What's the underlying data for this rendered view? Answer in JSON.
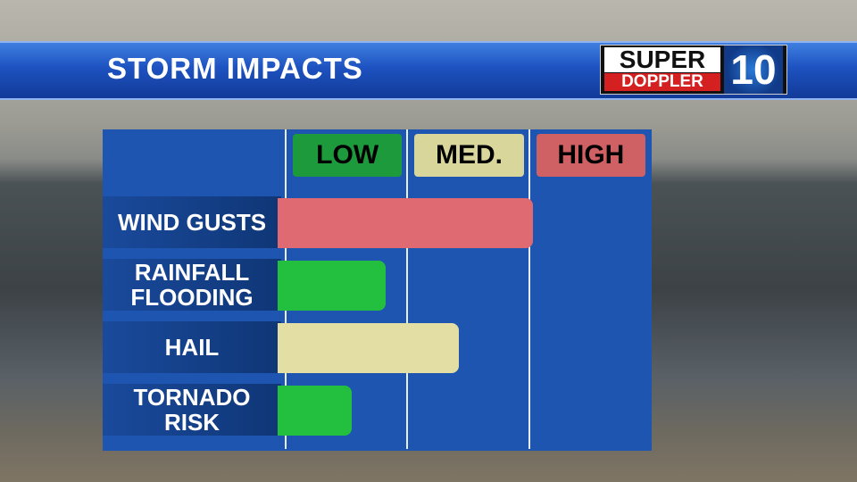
{
  "header": {
    "title": "STORM IMPACTS",
    "logo": {
      "line1": "SUPER",
      "line2": "DOPPLER",
      "number": "10"
    }
  },
  "chart_data": {
    "type": "bar",
    "orientation": "horizontal",
    "levels": [
      "LOW",
      "MED.",
      "HIGH"
    ],
    "level_colors": [
      "#1c9a3c",
      "#d9d69c",
      "#cf6064"
    ],
    "categories": [
      "WIND GUSTS",
      "RAINFALL\nFLOODING",
      "HAIL",
      "TORNADO\nRISK"
    ],
    "values": [
      2.03,
      0.82,
      1.42,
      0.54
    ],
    "colors": [
      "#e06a72",
      "#22c03e",
      "#e2dea4",
      "#22c03e"
    ],
    "xlim": [
      0,
      3
    ]
  }
}
